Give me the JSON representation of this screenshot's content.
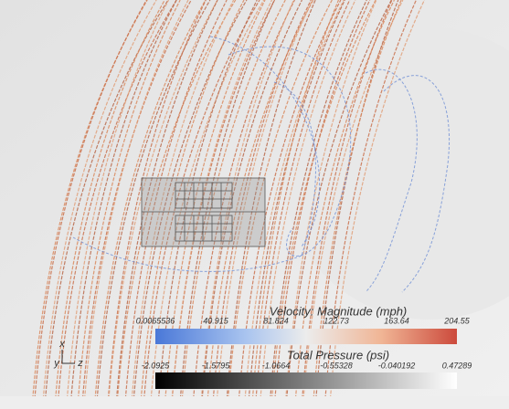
{
  "legends": [
    {
      "title": "Velocity: Magnitude (mph)",
      "ticks": [
        "0.0065536",
        "40.915",
        "81.824",
        "122.73",
        "163.64",
        "204.55"
      ]
    },
    {
      "title": "Total Pressure (psi)",
      "ticks": [
        "-2.0925",
        "-1.5795",
        "-1.0664",
        "-0.55328",
        "-0.040192",
        "0.47289"
      ]
    }
  ],
  "axes": {
    "x": "x",
    "y": "y",
    "z": "z"
  }
}
